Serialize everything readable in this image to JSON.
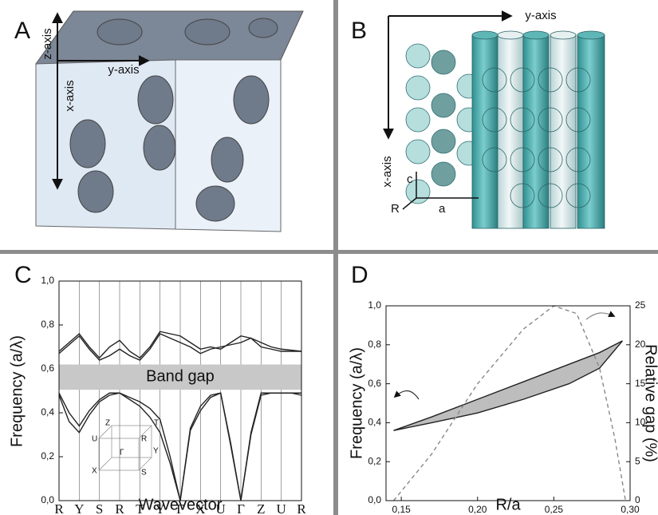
{
  "panels": {
    "A": {
      "label": "A",
      "axes": [
        "z-axis",
        "y-axis",
        "x-axis"
      ]
    },
    "B": {
      "label": "B",
      "axes": [
        "y-axis",
        "x-axis"
      ],
      "lattice": [
        "c",
        "R",
        "a"
      ]
    }
  },
  "chart_data": [
    {
      "type": "line",
      "panel_label": "C",
      "x_label": "Wavevector",
      "y_label": "Frequency (a/λ)",
      "xlim": [
        0,
        12
      ],
      "ylim": [
        0,
        1
      ],
      "xticks": [
        {
          "value": 0,
          "label": "R"
        },
        {
          "value": 1,
          "label": "Y"
        },
        {
          "value": 2,
          "label": "S"
        },
        {
          "value": 3,
          "label": "R"
        },
        {
          "value": 4,
          "label": "T"
        },
        {
          "value": 5,
          "label": "Y"
        },
        {
          "value": 6,
          "label": "Γ"
        },
        {
          "value": 7,
          "label": "X"
        },
        {
          "value": 8,
          "label": "U"
        },
        {
          "value": 9,
          "label": "Γ"
        },
        {
          "value": 10,
          "label": "Z"
        },
        {
          "value": 11,
          "label": "U"
        },
        {
          "value": 12,
          "label": "R"
        }
      ],
      "yticks": [
        {
          "value": 0,
          "label": "0,0"
        },
        {
          "value": 0.2,
          "label": "0,2"
        },
        {
          "value": 0.4,
          "label": "0,4"
        },
        {
          "value": 0.6,
          "label": "0,6"
        },
        {
          "value": 0.8,
          "label": "0,8"
        },
        {
          "value": 1,
          "label": "1,0"
        }
      ],
      "grid": "x",
      "band_gap": {
        "label": "Band gap",
        "range": [
          0.505,
          0.62
        ],
        "color": "#c8c8c8"
      },
      "inset_labels": [
        "Z",
        "T",
        "U",
        "R",
        "Γ",
        "Y",
        "X",
        "S"
      ],
      "x": [
        0,
        0.5,
        1,
        1.5,
        2,
        2.5,
        3,
        3.5,
        4,
        4.5,
        5,
        5.5,
        6,
        6.5,
        7,
        7.5,
        8,
        8.5,
        9,
        9.5,
        10,
        10.5,
        11,
        11.5,
        12
      ],
      "series": [
        {
          "color": "#222222",
          "values": [
            0.68,
            0.72,
            0.76,
            0.7,
            0.65,
            0.7,
            0.73,
            0.68,
            0.65,
            0.7,
            0.77,
            0.76,
            0.75,
            0.72,
            0.69,
            0.7,
            0.69,
            0.72,
            0.75,
            0.74,
            0.72,
            0.7,
            0.69,
            0.685,
            0.68
          ]
        },
        {
          "color": "#222222",
          "values": [
            0.67,
            0.71,
            0.75,
            0.69,
            0.64,
            0.66,
            0.69,
            0.66,
            0.64,
            0.69,
            0.76,
            0.74,
            0.72,
            0.7,
            0.67,
            0.69,
            0.7,
            0.71,
            0.72,
            0.74,
            0.7,
            0.69,
            0.68,
            0.68,
            0.68
          ]
        },
        {
          "color": "#222222",
          "values": [
            0.48,
            0.36,
            0.31,
            0.39,
            0.45,
            0.48,
            0.49,
            0.46,
            0.43,
            0.38,
            0.31,
            0.17,
            0.0,
            0.32,
            0.41,
            0.47,
            0.49,
            0.25,
            0.0,
            0.3,
            0.48,
            0.49,
            0.49,
            0.49,
            0.48
          ]
        },
        {
          "color": "#222222",
          "values": [
            0.49,
            0.4,
            0.34,
            0.41,
            0.46,
            0.49,
            0.49,
            0.47,
            0.45,
            0.42,
            0.37,
            0.2,
            0.0,
            0.33,
            0.43,
            0.48,
            0.49,
            0.26,
            0.0,
            0.31,
            0.49,
            0.49,
            0.49,
            0.49,
            0.49
          ]
        }
      ]
    },
    {
      "type": "area",
      "panel_label": "D",
      "x_label": "R/a",
      "y_label": "Frequency (a/λ)",
      "y2_label": "Relative gap (%)",
      "xlim": [
        0.14,
        0.3
      ],
      "ylim": [
        0,
        1
      ],
      "y2lim": [
        0,
        25
      ],
      "xticks": [
        {
          "value": 0.15,
          "label": "0,15"
        },
        {
          "value": 0.2,
          "label": "0,20"
        },
        {
          "value": 0.25,
          "label": "0,25"
        },
        {
          "value": 0.3,
          "label": "0,30"
        }
      ],
      "yticks": [
        {
          "value": 0,
          "label": "0,0"
        },
        {
          "value": 0.2,
          "label": "0,2"
        },
        {
          "value": 0.4,
          "label": "0,4"
        },
        {
          "value": 0.6,
          "label": "0,6"
        },
        {
          "value": 0.8,
          "label": "0,8"
        },
        {
          "value": 1,
          "label": "1,0"
        }
      ],
      "y2ticks": [
        0,
        5,
        10,
        15,
        20,
        25
      ],
      "fill_color": "#bdbdbd",
      "series": [
        {
          "color": "#222222",
          "x": [
            0.145,
            0.17,
            0.2,
            0.23,
            0.26,
            0.28,
            0.295
          ],
          "values": [
            0.36,
            0.43,
            0.52,
            0.61,
            0.7,
            0.76,
            0.82
          ]
        },
        {
          "color": "#222222",
          "x": [
            0.145,
            0.17,
            0.2,
            0.23,
            0.26,
            0.28,
            0.295
          ],
          "values": [
            0.36,
            0.4,
            0.45,
            0.52,
            0.6,
            0.68,
            0.82
          ]
        },
        {
          "color": "#888888",
          "dash": true,
          "axis": "y2",
          "x": [
            0.145,
            0.17,
            0.2,
            0.23,
            0.25,
            0.265,
            0.28,
            0.29,
            0.297
          ],
          "values": [
            0,
            6,
            15,
            22,
            25,
            24,
            17,
            8,
            0
          ]
        }
      ]
    }
  ]
}
